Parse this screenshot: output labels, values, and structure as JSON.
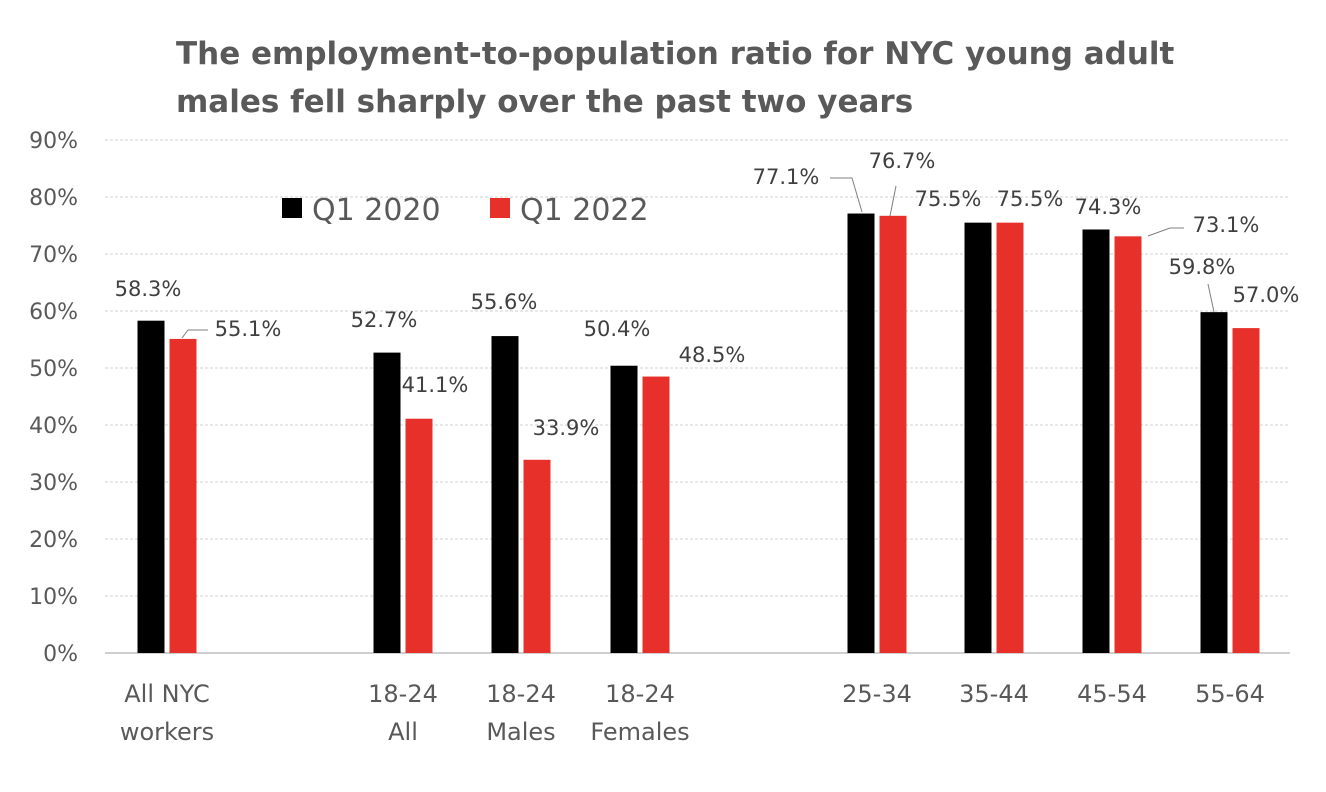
{
  "chart_data": {
    "type": "bar",
    "title_lines": [
      "The employment-to-population ratio for NYC young adult",
      "males fell sharply over the past two years"
    ],
    "categories": [
      [
        "All NYC",
        "workers"
      ],
      [
        "18-24",
        "All"
      ],
      [
        "18-24",
        "Males"
      ],
      [
        "18-24",
        "Females"
      ],
      [
        "25-34"
      ],
      [
        "35-44"
      ],
      [
        "45-54"
      ],
      [
        "55-64"
      ]
    ],
    "series": [
      {
        "name": "Q1 2020",
        "color": "#000000",
        "values": [
          58.3,
          52.7,
          55.6,
          50.4,
          77.1,
          75.5,
          74.3,
          59.8
        ],
        "labels": [
          "58.3%",
          "52.7%",
          "55.6%",
          "50.4%",
          "77.1%",
          "75.5%",
          "74.3%",
          "59.8%"
        ]
      },
      {
        "name": "Q1 2022",
        "color": "#e8302a",
        "values": [
          55.1,
          41.1,
          33.9,
          48.5,
          76.7,
          75.5,
          73.1,
          57.0
        ],
        "labels": [
          "55.1%",
          "41.1%",
          "33.9%",
          "48.5%",
          "76.7%",
          "75.5%",
          "73.1%",
          "57.0%"
        ]
      }
    ],
    "y_ticks": [
      "0%",
      "10%",
      "20%",
      "30%",
      "40%",
      "50%",
      "60%",
      "70%",
      "80%",
      "90%"
    ],
    "ylim": [
      0,
      90
    ],
    "grid": true,
    "legend_position": "top-left inside plot"
  }
}
